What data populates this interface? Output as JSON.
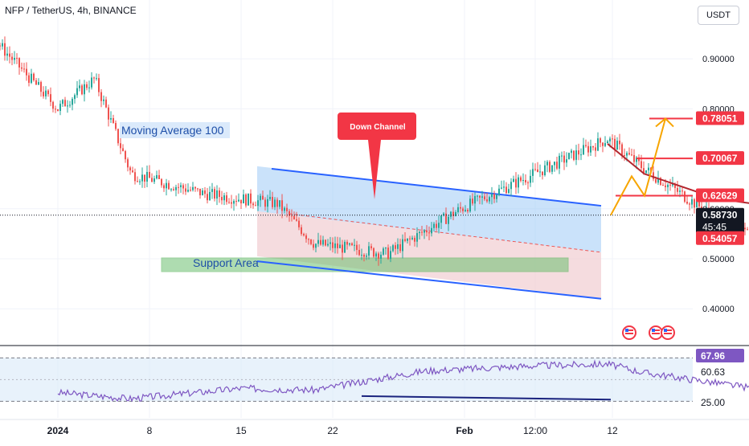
{
  "header": {
    "symbol": "NFP / TetherUS, 4h, BINANCE",
    "currency": "USDT"
  },
  "colors": {
    "up": "#26a69a",
    "down": "#ef5350",
    "ma": "#b2262e",
    "channel_line": "#2962ff",
    "channel_fill_top": "#9ecbf5",
    "channel_fill_bottom": "#f1cdd2",
    "support_zone": "#6cc070",
    "projection": "#f7a500",
    "red_label": "#f23645",
    "rsi_line": "#7e57c2",
    "rsi_band": "#d8eaf9"
  },
  "annotations": {
    "moving_average_label": "Moving Average 100",
    "down_channel_label": "Down Channel",
    "support_label": "Support Area"
  },
  "price_axis": {
    "ticks": [
      "0.90000",
      "0.80000",
      "0.60000",
      "0.50000",
      "0.40000"
    ],
    "tick_values": [
      0.9,
      0.8,
      0.6,
      0.5,
      0.4
    ],
    "target_labels": [
      "0.78051",
      "0.70067",
      "0.62629"
    ],
    "target_values": [
      0.78051,
      0.70067,
      0.62629
    ],
    "current_price": "0.58730",
    "current_value": 0.5873,
    "countdown": "45:45",
    "ma_value_label": "0.54057",
    "ma_value": 0.54057
  },
  "rsi_axis": {
    "current": "67.96",
    "ma": "60.63",
    "ticks": [
      "25.00"
    ],
    "upper_level": "75.00"
  },
  "time_axis": {
    "labels": [
      "2024",
      "8",
      "15",
      "22",
      "Feb",
      "12:00",
      "12"
    ]
  },
  "chart_data": {
    "type": "candlestick",
    "symbol": "NFP / TetherUS",
    "interval": "4h",
    "exchange": "BINANCE",
    "ylim": [
      0.37,
      1.02
    ],
    "price_series_approx": [
      {
        "date": "2023-12-27",
        "close": 0.95
      },
      {
        "date": "2023-12-29",
        "close": 0.88
      },
      {
        "date": "2023-12-30",
        "close": 0.96
      },
      {
        "date": "2024-01-01",
        "close": 0.8
      },
      {
        "date": "2024-01-02",
        "close": 0.86
      },
      {
        "date": "2024-01-03",
        "close": 0.67
      },
      {
        "date": "2024-01-05",
        "close": 0.63
      },
      {
        "date": "2024-01-07",
        "close": 0.61
      },
      {
        "date": "2024-01-08",
        "close": 0.53
      },
      {
        "date": "2024-01-10",
        "close": 0.51
      },
      {
        "date": "2024-01-12",
        "close": 0.6
      },
      {
        "date": "2024-01-14",
        "close": 0.67
      },
      {
        "date": "2024-01-16",
        "close": 0.74
      },
      {
        "date": "2024-01-17",
        "close": 0.68
      },
      {
        "date": "2024-01-19",
        "close": 0.58
      },
      {
        "date": "2024-01-21",
        "close": 0.55
      },
      {
        "date": "2024-01-23",
        "close": 0.49
      },
      {
        "date": "2024-01-25",
        "close": 0.5
      },
      {
        "date": "2024-01-27",
        "close": 0.59
      },
      {
        "date": "2024-01-29",
        "close": 0.59
      },
      {
        "date": "2024-01-31",
        "close": 0.61
      },
      {
        "date": "2024-02-02",
        "close": 0.52
      },
      {
        "date": "2024-02-05",
        "close": 0.51
      },
      {
        "date": "2024-02-08",
        "close": 0.5
      },
      {
        "date": "2024-02-10",
        "close": 0.55
      },
      {
        "date": "2024-02-11",
        "close": 0.5873
      }
    ],
    "moving_average_100": [
      {
        "date": "2024-01-16",
        "value": 0.73
      },
      {
        "date": "2024-01-17",
        "value": 0.67
      },
      {
        "date": "2024-01-19",
        "value": 0.62
      },
      {
        "date": "2024-01-22",
        "value": 0.59
      },
      {
        "date": "2024-01-27",
        "value": 0.58
      },
      {
        "date": "2024-01-31",
        "value": 0.58
      },
      {
        "date": "2024-02-04",
        "value": 0.545
      },
      {
        "date": "2024-02-08",
        "value": 0.525
      },
      {
        "date": "2024-02-11",
        "value": 0.54057
      }
    ],
    "rsi_series_approx": [
      {
        "date": "2024-01-01",
        "value": 35
      },
      {
        "date": "2024-01-03",
        "value": 28
      },
      {
        "date": "2024-01-06",
        "value": 40
      },
      {
        "date": "2024-01-08",
        "value": 38
      },
      {
        "date": "2024-01-11",
        "value": 60
      },
      {
        "date": "2024-01-14",
        "value": 66
      },
      {
        "date": "2024-01-16",
        "value": 68
      },
      {
        "date": "2024-01-17",
        "value": 58
      },
      {
        "date": "2024-01-20",
        "value": 40
      },
      {
        "date": "2024-01-22",
        "value": 33
      },
      {
        "date": "2024-01-24",
        "value": 36
      },
      {
        "date": "2024-01-26",
        "value": 62
      },
      {
        "date": "2024-01-28",
        "value": 68
      },
      {
        "date": "2024-02-01",
        "value": 40
      },
      {
        "date": "2024-02-05",
        "value": 34
      },
      {
        "date": "2024-02-09",
        "value": 44
      },
      {
        "date": "2024-02-10",
        "value": 72
      },
      {
        "date": "2024-02-11",
        "value": 67.96
      }
    ],
    "rsi_ylim": [
      20,
      80
    ],
    "rsi_levels": [
      25,
      75
    ],
    "projection_path": [
      0.5873,
      0.665,
      0.62629,
      0.78051
    ]
  }
}
